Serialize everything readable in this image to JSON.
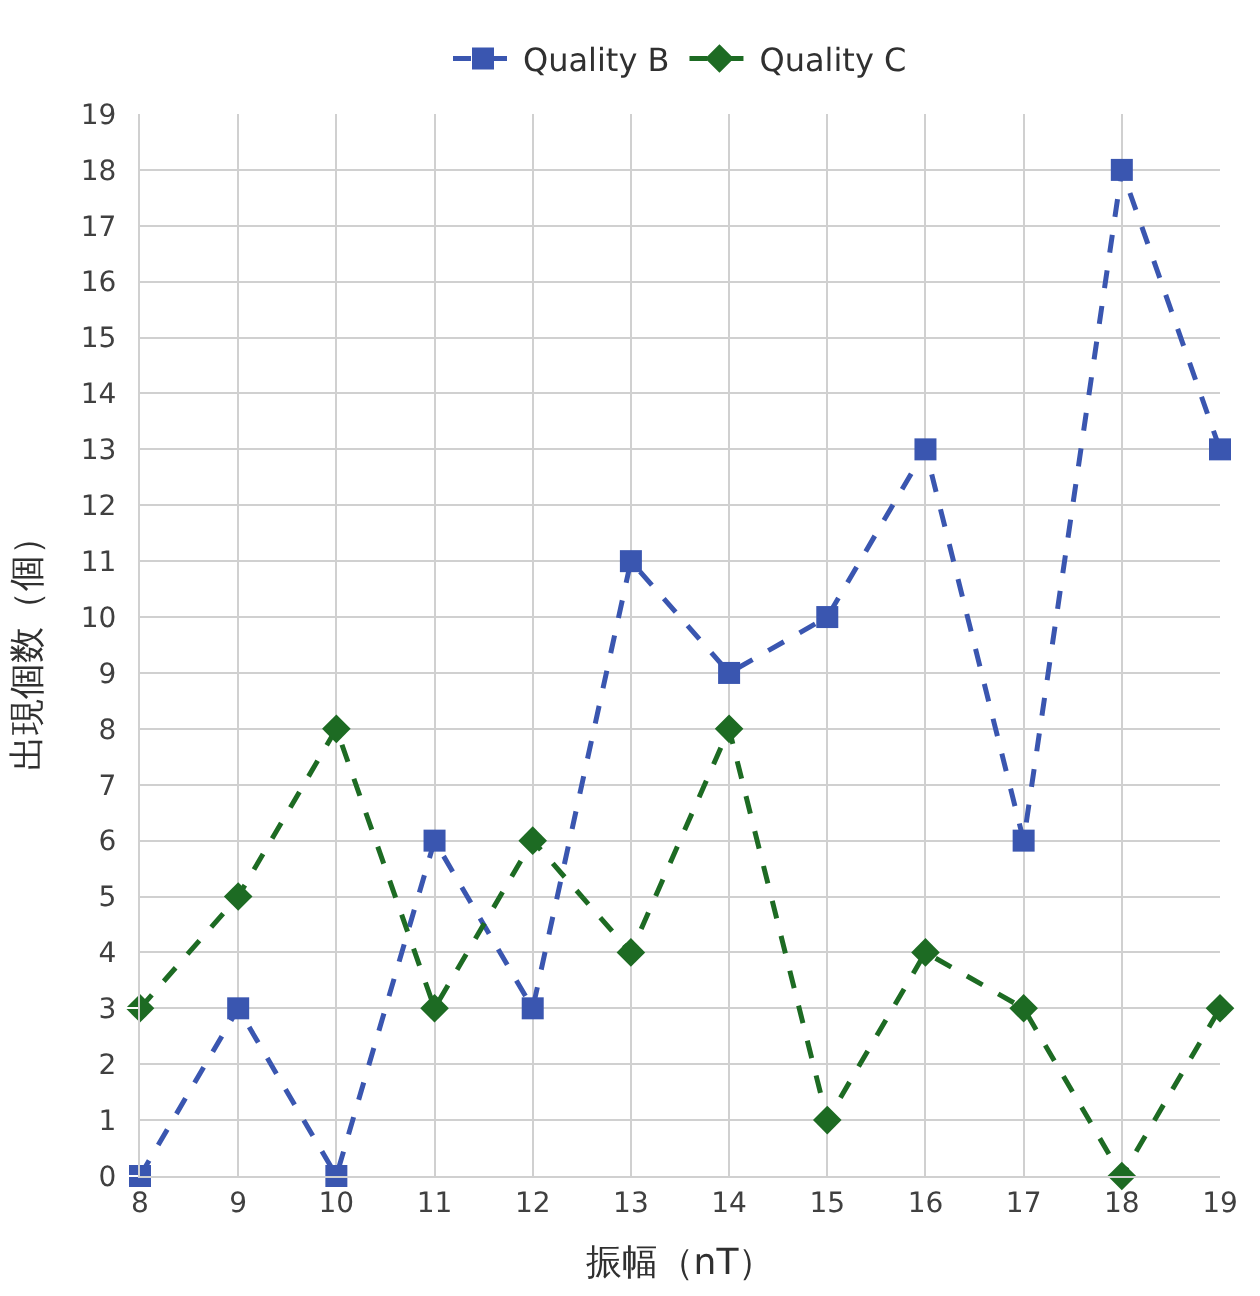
{
  "chart_data": {
    "type": "line",
    "xlabel": "振幅（nT）",
    "ylabel": "出現個数（個）",
    "x": [
      8,
      9,
      10,
      11,
      12,
      13,
      14,
      15,
      16,
      17,
      18,
      19
    ],
    "series": [
      {
        "name": "Quality B",
        "color": "#3a56b0",
        "marker": "square",
        "values": [
          0,
          3,
          0,
          6,
          3,
          11,
          9,
          10,
          13,
          6,
          18,
          13
        ]
      },
      {
        "name": "Quality C",
        "color": "#1d6b23",
        "marker": "diamond",
        "values": [
          3,
          5,
          8,
          3,
          6,
          4,
          8,
          1,
          4,
          3,
          0,
          3
        ]
      }
    ],
    "xlim": [
      8,
      19
    ],
    "xticks": [
      8,
      9,
      10,
      11,
      12,
      13,
      14,
      15,
      16,
      17,
      18,
      19
    ],
    "ylim": [
      0,
      19
    ],
    "yticks": [
      0,
      1,
      2,
      3,
      4,
      5,
      6,
      7,
      8,
      9,
      10,
      11,
      12,
      13,
      14,
      15,
      16,
      17,
      18,
      19
    ],
    "grid": true,
    "legend": "top",
    "line_style": "dashed"
  }
}
